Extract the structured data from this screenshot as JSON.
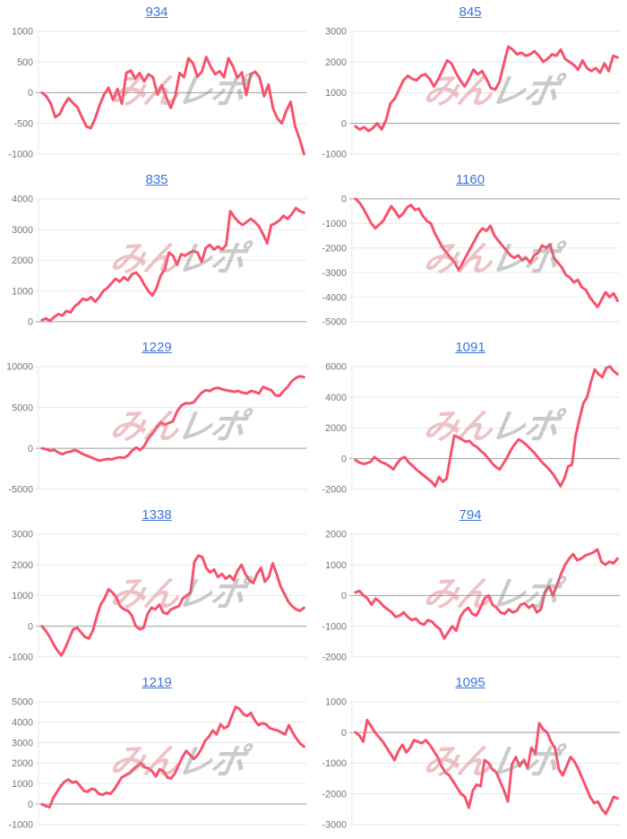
{
  "page": {
    "background": "#ffffff"
  },
  "colors": {
    "line": "#f9506b",
    "title_link": "#3d74dc",
    "tick_label": "#757575",
    "gridline": "#e8e8e8",
    "zero_line": "#9e9e9e",
    "watermark_pink": "#d97983",
    "watermark_gray": "#8c8c8c"
  },
  "watermark": {
    "text_pink": "みん",
    "text_gray": "レポ"
  },
  "chart_data": [
    {
      "type": "line",
      "title": "934",
      "y_ticks": [
        1000,
        500,
        0,
        -500,
        -1000
      ],
      "ylim": [
        -1000,
        1000
      ],
      "values": [
        0,
        -60,
        -180,
        -400,
        -350,
        -200,
        -90,
        -170,
        -240,
        -400,
        -550,
        -580,
        -420,
        -200,
        -30,
        80,
        -120,
        60,
        -180,
        320,
        360,
        230,
        320,
        180,
        300,
        250,
        -30,
        120,
        -80,
        -250,
        -60,
        320,
        250,
        560,
        480,
        260,
        340,
        580,
        420,
        300,
        350,
        250,
        560,
        430,
        240,
        330,
        -40,
        300,
        340,
        250,
        -60,
        130,
        -250,
        -420,
        -500,
        -300,
        -150,
        -550,
        -750,
        -1000
      ]
    },
    {
      "type": "line",
      "title": "845",
      "y_ticks": [
        3000,
        2000,
        1000,
        0,
        -1000
      ],
      "ylim": [
        -1000,
        3000
      ],
      "values": [
        -100,
        -200,
        -120,
        -250,
        -150,
        0,
        -200,
        100,
        650,
        800,
        1100,
        1400,
        1550,
        1450,
        1400,
        1550,
        1600,
        1450,
        1200,
        1450,
        1750,
        2050,
        1950,
        1650,
        1400,
        1200,
        1450,
        1750,
        1600,
        1700,
        1450,
        1150,
        1100,
        1350,
        1950,
        2500,
        2400,
        2250,
        2300,
        2200,
        2250,
        2350,
        2200,
        2000,
        2100,
        2250,
        2200,
        2400,
        2100,
        2000,
        1900,
        1750,
        2050,
        1800,
        1700,
        1800,
        1650,
        1950,
        1700,
        2200,
        2150
      ]
    },
    {
      "type": "line",
      "title": "835",
      "y_ticks": [
        4000,
        3000,
        2000,
        1000,
        0
      ],
      "ylim": [
        0,
        4000
      ],
      "values": [
        50,
        100,
        30,
        150,
        250,
        200,
        350,
        300,
        500,
        600,
        750,
        700,
        800,
        650,
        800,
        1000,
        1100,
        1250,
        1400,
        1300,
        1450,
        1350,
        1550,
        1600,
        1450,
        1200,
        1000,
        850,
        1100,
        1500,
        1700,
        2250,
        2150,
        1850,
        2200,
        2150,
        2250,
        2300,
        2250,
        1950,
        2400,
        2500,
        2350,
        2450,
        2350,
        2500,
        3600,
        3400,
        3250,
        3150,
        3250,
        3350,
        3250,
        3100,
        2850,
        2550,
        3150,
        3200,
        3300,
        3450,
        3350,
        3500,
        3700,
        3600,
        3550
      ]
    },
    {
      "type": "line",
      "title": "1160",
      "y_ticks": [
        0,
        -1000,
        -2000,
        -3000,
        -4000,
        -5000
      ],
      "ylim": [
        -5000,
        0
      ],
      "values": [
        0,
        -150,
        -400,
        -700,
        -1000,
        -1200,
        -1050,
        -900,
        -600,
        -300,
        -500,
        -750,
        -600,
        -350,
        -250,
        -450,
        -400,
        -700,
        -900,
        -1000,
        -1400,
        -1700,
        -2000,
        -2200,
        -2400,
        -2600,
        -2900,
        -2600,
        -2300,
        -2000,
        -1700,
        -1400,
        -1200,
        -1300,
        -1100,
        -1500,
        -1700,
        -1900,
        -2100,
        -2300,
        -2400,
        -2300,
        -2500,
        -2400,
        -2600,
        -2300,
        -2200,
        -1900,
        -2000,
        -1850,
        -2400,
        -2600,
        -2800,
        -3100,
        -3200,
        -3400,
        -3300,
        -3600,
        -3700,
        -4000,
        -4200,
        -4400,
        -4100,
        -3800,
        -4000,
        -3850,
        -4150
      ]
    },
    {
      "type": "line",
      "title": "1229",
      "y_ticks": [
        10000,
        5000,
        0,
        -5000
      ],
      "ylim": [
        -5000,
        10000
      ],
      "values": [
        0,
        -100,
        -300,
        -200,
        -500,
        -700,
        -500,
        -400,
        -200,
        -400,
        -700,
        -900,
        -1100,
        -1300,
        -1500,
        -1400,
        -1300,
        -1350,
        -1200,
        -1100,
        -1150,
        -900,
        -300,
        100,
        -200,
        300,
        1200,
        1800,
        2500,
        3200,
        2900,
        3100,
        3300,
        4500,
        5200,
        5500,
        5500,
        5600,
        6200,
        6800,
        7100,
        7000,
        7300,
        7400,
        7200,
        7100,
        7000,
        6900,
        7000,
        6800,
        6700,
        7000,
        6900,
        6700,
        7500,
        7300,
        7100,
        6500,
        6400,
        7000,
        7500,
        8200,
        8600,
        8800,
        8700
      ]
    },
    {
      "type": "line",
      "title": "1091",
      "y_ticks": [
        6000,
        4000,
        2000,
        0,
        -2000
      ],
      "ylim": [
        -2000,
        6000
      ],
      "values": [
        -100,
        -250,
        -350,
        -300,
        -200,
        100,
        -100,
        -250,
        -350,
        -500,
        -700,
        -300,
        0,
        100,
        -250,
        -450,
        -700,
        -900,
        -1100,
        -1300,
        -1500,
        -1800,
        -1200,
        -1500,
        -1300,
        100,
        1500,
        1400,
        1250,
        1100,
        1150,
        900,
        750,
        500,
        300,
        0,
        -300,
        -550,
        -700,
        -300,
        100,
        600,
        950,
        1250,
        1100,
        900,
        650,
        400,
        100,
        -200,
        -450,
        -700,
        -1000,
        -1400,
        -1800,
        -1300,
        -500,
        -400,
        1500,
        2600,
        3600,
        4000,
        5000,
        5800,
        5500,
        5300,
        5900,
        6000,
        5700,
        5500
      ]
    },
    {
      "type": "line",
      "title": "1338",
      "y_ticks": [
        3000,
        2000,
        1000,
        0,
        -1000
      ],
      "ylim": [
        -1000,
        3000
      ],
      "values": [
        0,
        -150,
        -350,
        -600,
        -800,
        -950,
        -700,
        -400,
        -100,
        -50,
        -200,
        -350,
        -400,
        -150,
        300,
        700,
        900,
        1200,
        1100,
        950,
        650,
        550,
        500,
        350,
        0,
        -100,
        -50,
        400,
        600,
        550,
        700,
        450,
        400,
        550,
        600,
        650,
        900,
        1000,
        1100,
        2100,
        2300,
        2250,
        1900,
        1750,
        1850,
        1600,
        1700,
        1550,
        1650,
        1500,
        1800,
        2000,
        1700,
        1500,
        1400,
        1700,
        1900,
        1450,
        1600,
        2050,
        1700,
        1300,
        1050,
        800,
        650,
        550,
        500,
        600
      ]
    },
    {
      "type": "line",
      "title": "794",
      "y_ticks": [
        2000,
        1000,
        0,
        -1000,
        -2000
      ],
      "ylim": [
        -2000,
        2000
      ],
      "values": [
        100,
        150,
        0,
        -100,
        -300,
        -100,
        -200,
        -350,
        -450,
        -550,
        -700,
        -650,
        -550,
        -700,
        -800,
        -750,
        -900,
        -950,
        -800,
        -850,
        -1000,
        -1100,
        -1400,
        -1200,
        -1000,
        -1150,
        -700,
        -500,
        -400,
        -600,
        -650,
        -400,
        -100,
        0,
        -300,
        -400,
        -550,
        -600,
        -450,
        -550,
        -500,
        -300,
        -250,
        -400,
        -300,
        -550,
        -450,
        100,
        300,
        0,
        350,
        700,
        1000,
        1200,
        1350,
        1150,
        1200,
        1300,
        1350,
        1400,
        1500,
        1100,
        1000,
        1100,
        1050,
        1200
      ]
    },
    {
      "type": "line",
      "title": "1219",
      "y_ticks": [
        5000,
        4000,
        3000,
        2000,
        1000,
        0,
        -1000
      ],
      "ylim": [
        -1000,
        5000
      ],
      "values": [
        0,
        -100,
        -150,
        300,
        600,
        900,
        1100,
        1200,
        1050,
        1100,
        900,
        650,
        600,
        750,
        700,
        500,
        450,
        550,
        500,
        700,
        1000,
        1300,
        1400,
        1500,
        1700,
        1850,
        2000,
        1800,
        1750,
        1600,
        1350,
        1700,
        1600,
        1300,
        1250,
        1500,
        1900,
        2300,
        2600,
        2400,
        2200,
        2400,
        2700,
        3100,
        3300,
        3600,
        3400,
        3900,
        3700,
        3800,
        4300,
        4750,
        4650,
        4400,
        4300,
        4450,
        4100,
        3850,
        3950,
        3900,
        3700,
        3650,
        3600,
        3500,
        3400,
        3850,
        3500,
        3200,
        2950,
        2800
      ]
    },
    {
      "type": "line",
      "title": "1095",
      "y_ticks": [
        1000,
        0,
        -1000,
        -2000,
        -3000
      ],
      "ylim": [
        -3000,
        1000
      ],
      "values": [
        0,
        -100,
        -300,
        400,
        200,
        0,
        -150,
        -300,
        -500,
        -700,
        -900,
        -600,
        -400,
        -650,
        -500,
        -250,
        -300,
        -350,
        -250,
        -400,
        -600,
        -800,
        -1100,
        -1300,
        -1400,
        -1600,
        -1800,
        -2000,
        -2100,
        -2450,
        -1900,
        -1700,
        -1750,
        -900,
        -1000,
        -1200,
        -1300,
        -1600,
        -1900,
        -2250,
        -1050,
        -800,
        -1100,
        -900,
        -1150,
        -500,
        -700,
        300,
        100,
        0,
        -300,
        -500,
        -1200,
        -1400,
        -1100,
        -800,
        -950,
        -1200,
        -1500,
        -1800,
        -2100,
        -2300,
        -2250,
        -2500,
        -2650,
        -2400,
        -2100,
        -2150
      ]
    }
  ]
}
